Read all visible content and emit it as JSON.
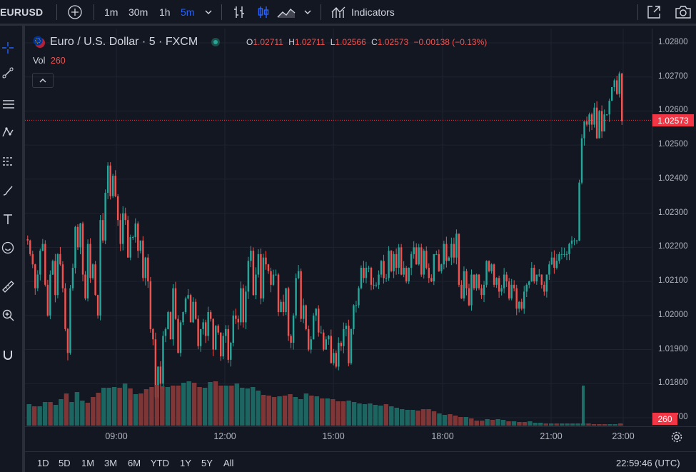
{
  "toolbar": {
    "symbol": "EURUSD",
    "intervals": [
      "1m",
      "30m",
      "1h",
      "5m"
    ],
    "active_interval": "5m",
    "indicators_label": "Indicators"
  },
  "legend": {
    "title": "Euro / U.S. Dollar · 5 · FXCM",
    "o_label": "O",
    "o": "1.02711",
    "h_label": "H",
    "h": "1.02711",
    "l_label": "L",
    "l": "1.02566",
    "c_label": "C",
    "c": "1.02573",
    "change": "−0.00138 (−0.13%)",
    "vol_label": "Vol",
    "vol": "260"
  },
  "price_scale": {
    "labels": [
      "1.02800",
      "1.02700",
      "1.02600",
      "1.02500",
      "1.02400",
      "1.02300",
      "1.02200",
      "1.02100",
      "1.02000",
      "1.01900",
      "1.01800",
      "1.01700"
    ],
    "current_price": "1.02573",
    "current_volume": "260"
  },
  "time_axis": [
    "09:00",
    "12:00",
    "15:00",
    "18:00",
    "21:00",
    "23:00"
  ],
  "range_buttons": [
    "1D",
    "5D",
    "1M",
    "3M",
    "6M",
    "YTD",
    "1Y",
    "5Y",
    "All"
  ],
  "clock": "22:59:46 (UTC)",
  "colors": {
    "up": "#26a69a",
    "down": "#ef5350",
    "accent": "#2962ff",
    "tag": "#f23645"
  },
  "chart_data": {
    "type": "candlestick",
    "y_range": [
      1.0166,
      1.0284
    ],
    "series_path": [
      1.0222,
      1.0218,
      1.0215,
      1.0208,
      1.0212,
      1.0219,
      1.0221,
      1.0209,
      1.02,
      1.0212,
      1.0216,
      1.0206,
      1.0218,
      1.0215,
      1.0208,
      1.0196,
      1.0189,
      1.0208,
      1.0214,
      1.0226,
      1.022,
      1.0227,
      1.0212,
      1.0205,
      1.0221,
      1.0211,
      1.0215,
      1.0206,
      1.02,
      1.0228,
      1.0222,
      1.0236,
      1.0244,
      1.0235,
      1.0241,
      1.0235,
      1.0228,
      1.0221,
      1.023,
      1.0228,
      1.0217,
      1.0223,
      1.0223,
      1.0227,
      1.0219,
      1.0222,
      1.0211,
      1.0217,
      1.021,
      1.0196,
      1.0193,
      1.0176,
      1.0185,
      1.018,
      1.0194,
      1.0196,
      1.0201,
      1.0193,
      1.0208,
      1.0199,
      1.0189,
      1.0198,
      1.0201,
      1.0205,
      1.0206,
      1.0198,
      1.0204,
      1.0199,
      1.0191,
      1.0196,
      1.0198,
      1.0194,
      1.0201,
      1.0199,
      1.019,
      1.0197,
      1.0195,
      1.0188,
      1.0194,
      1.0196,
      1.0187,
      1.0192,
      1.02,
      1.0199,
      1.0198,
      1.0208,
      1.0198,
      1.0207,
      1.0216,
      1.0219,
      1.0206,
      1.0212,
      1.0218,
      1.0205,
      1.0217,
      1.0215,
      1.0213,
      1.0209,
      1.0212,
      1.0212,
      1.0201,
      1.0204,
      1.0201,
      1.0208,
      1.0194,
      1.0192,
      1.02,
      1.0211,
      1.0213,
      1.0199,
      1.0203,
      1.0196,
      1.019,
      1.0193,
      1.02,
      1.0202,
      1.0195,
      1.0195,
      1.019,
      1.0193,
      1.0194,
      1.0186,
      1.0189,
      1.0185,
      1.0192,
      1.0191,
      1.0196,
      1.0197,
      1.0186,
      1.0196,
      1.0203,
      1.0203,
      1.0208,
      1.0214,
      1.0211,
      1.0214,
      1.0214,
      1.0209,
      1.0209,
      1.0209,
      1.0212,
      1.0216,
      1.0211,
      1.0211,
      1.0219,
      1.0213,
      1.0218,
      1.0214,
      1.022,
      1.0212,
      1.0214,
      1.021,
      1.0214,
      1.0218,
      1.022,
      1.0215,
      1.022,
      1.0212,
      1.0219,
      1.0214,
      1.0211,
      1.021,
      1.0218,
      1.0218,
      1.0213,
      1.0215,
      1.0221,
      1.0216,
      1.0217,
      1.0221,
      1.0217,
      1.0224,
      1.0209,
      1.0205,
      1.0213,
      1.0208,
      1.0203,
      1.0212,
      1.0208,
      1.0212,
      1.0208,
      1.0206,
      1.0209,
      1.0216,
      1.0213,
      1.0215,
      1.0209,
      1.0211,
      1.0207,
      1.0208,
      1.0212,
      1.021,
      1.0205,
      1.0209,
      1.0208,
      1.0202,
      1.0204,
      1.0202,
      1.0207,
      1.0209,
      1.021,
      1.0214,
      1.021,
      1.0212,
      1.0212,
      1.0209,
      1.0207,
      1.0212,
      1.0215,
      1.0217,
      1.0214,
      1.0216,
      1.0218,
      1.0218,
      1.0218,
      1.0218,
      1.0221,
      1.0222,
      1.0222,
      1.0222,
      1.0239,
      1.0252,
      1.0257,
      1.0256,
      1.0259,
      1.0256,
      1.0261,
      1.0252,
      1.026,
      1.0254,
      1.0259,
      1.0259,
      1.0263,
      1.0267,
      1.0269,
      1.0265,
      1.0271,
      1.0257
    ],
    "volumes": [
      30,
      27,
      27,
      33,
      33,
      29,
      37,
      45,
      33,
      47,
      35,
      32,
      40,
      46,
      53,
      53,
      54,
      53,
      59,
      52,
      44,
      45,
      51,
      54,
      57,
      55,
      54,
      56,
      56,
      60,
      62,
      60,
      54,
      53,
      61,
      62,
      56,
      56,
      56,
      59,
      53,
      52,
      54,
      49,
      43,
      42,
      40,
      41,
      42,
      44,
      40,
      37,
      45,
      42,
      41,
      38,
      38,
      37,
      34,
      34,
      35,
      33,
      31,
      30,
      31,
      29,
      28,
      30,
      27,
      25,
      23,
      22,
      22,
      21,
      23,
      23,
      20,
      17,
      15,
      16,
      14,
      12,
      12,
      10,
      7,
      7,
      9,
      8,
      9,
      8,
      6,
      6,
      5,
      5,
      6,
      4,
      4,
      3,
      3,
      3,
      3,
      3,
      3,
      3,
      3,
      3,
      2,
      2,
      2,
      2,
      2,
      2
    ],
    "volume_note": "relative bar heights; latest volume 260"
  }
}
